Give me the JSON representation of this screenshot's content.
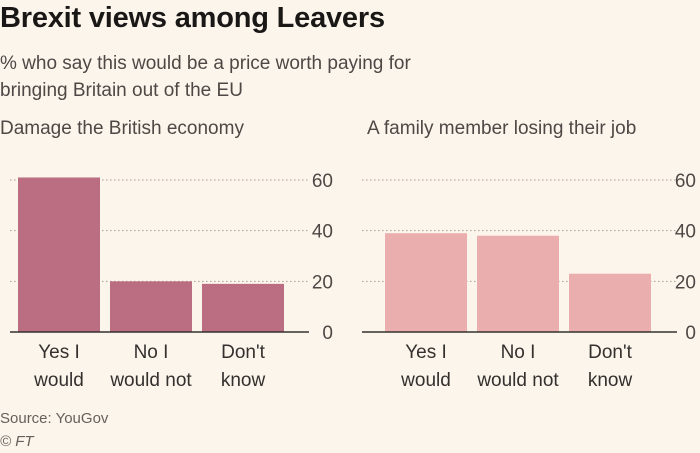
{
  "title": "Brexit views among Leavers",
  "subtitle": "% who say this would be a price worth paying for bringing Britain out of the EU",
  "source": "Source: YouGov",
  "credit": "© FT",
  "chart_data": [
    {
      "type": "bar",
      "title": "Damage the British economy",
      "categories": [
        [
          "Yes I",
          "would"
        ],
        [
          "No I",
          "would not"
        ],
        [
          "Don't",
          "know"
        ]
      ],
      "values": [
        61,
        20,
        19
      ],
      "ylim": [
        0,
        60
      ],
      "yticks": [
        0,
        20,
        40,
        60
      ],
      "color": "#bb6d82",
      "xlabel": "",
      "ylabel": ""
    },
    {
      "type": "bar",
      "title": "A family member losing their job",
      "categories": [
        [
          "Yes I",
          "would"
        ],
        [
          "No I",
          "would not"
        ],
        [
          "Don't",
          "know"
        ]
      ],
      "values": [
        39,
        38,
        23
      ],
      "ylim": [
        0,
        60
      ],
      "yticks": [
        0,
        20,
        40,
        60
      ],
      "color": "#eaaeae",
      "xlabel": "",
      "ylabel": ""
    }
  ]
}
